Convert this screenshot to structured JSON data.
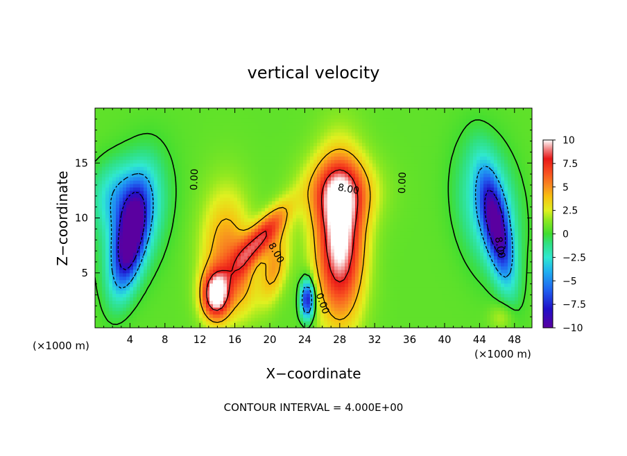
{
  "chart_data": {
    "type": "heatmap",
    "title": "vertical velocity",
    "xlabel": "X−coordinate",
    "ylabel": "Z−coordinate",
    "x_unit_left": "(×1000 m)",
    "x_unit_right": "(×1000 m)",
    "footer": "CONTOUR INTERVAL = 4.000E+00",
    "xlim": [
      0,
      50
    ],
    "ylim": [
      0,
      20
    ],
    "x_ticks": [
      4,
      8,
      12,
      16,
      20,
      24,
      28,
      32,
      36,
      40,
      44,
      48
    ],
    "x_tick_labels": [
      "4",
      "8",
      "12",
      "16",
      "20",
      "24",
      "28",
      "32",
      "36",
      "40",
      "44",
      "48"
    ],
    "y_ticks": [
      5,
      10,
      15
    ],
    "y_tick_labels": [
      "5",
      "10",
      "15"
    ],
    "colorbar": {
      "range": [
        -10,
        10
      ],
      "ticks": [
        10,
        7.5,
        5,
        2.5,
        0,
        -2.5,
        -5,
        -7.5,
        -10
      ],
      "tick_labels": [
        "10",
        "7.5",
        "5",
        "2.5",
        "0",
        "−2.5",
        "−5",
        "−7.5",
        "−10"
      ],
      "stops": [
        {
          "value": -10,
          "color": "#5a00a0"
        },
        {
          "value": -8,
          "color": "#2010c8"
        },
        {
          "value": -6,
          "color": "#2060f0"
        },
        {
          "value": -4,
          "color": "#20b0f0"
        },
        {
          "value": -2.5,
          "color": "#30e8d0"
        },
        {
          "value": -1,
          "color": "#30e080"
        },
        {
          "value": 0,
          "color": "#40dd30"
        },
        {
          "value": 1.5,
          "color": "#90e820"
        },
        {
          "value": 2.5,
          "color": "#e0f020"
        },
        {
          "value": 4,
          "color": "#f8c010"
        },
        {
          "value": 5,
          "color": "#f89020"
        },
        {
          "value": 6.5,
          "color": "#f85020"
        },
        {
          "value": 8,
          "color": "#e81818"
        },
        {
          "value": 9,
          "color": "#f08080"
        },
        {
          "value": 10,
          "color": "#ffffff"
        }
      ]
    },
    "contour_labels": [
      {
        "text": "0.00",
        "x": 11.4,
        "z": 13.5,
        "angle": -88
      },
      {
        "text": "0.00",
        "x": 35.2,
        "z": 13.2,
        "angle": -88
      },
      {
        "text": "0.00",
        "x": 26.0,
        "z": 2.2,
        "angle": 70
      },
      {
        "text": "8.00",
        "x": 20.7,
        "z": 6.8,
        "angle": 60
      },
      {
        "text": "8.00",
        "x": 29.0,
        "z": 12.6,
        "angle": 10
      },
      {
        "text": "8.00",
        "x": 46.3,
        "z": 7.3,
        "angle": 80
      }
    ],
    "features": [
      {
        "x": 4.0,
        "z": 8.0,
        "sx": 1.6,
        "sz": 4.5,
        "w": -10,
        "rot": 0.25
      },
      {
        "x": 4.5,
        "z": 10.0,
        "sx": 3.2,
        "sz": 5.5,
        "w": -4,
        "rot": 0.3
      },
      {
        "x": 2.5,
        "z": 12.0,
        "sx": 3.0,
        "sz": 3.0,
        "w": -3,
        "rot": 0
      },
      {
        "x": 13.8,
        "z": 3.0,
        "sx": 1.6,
        "sz": 2.2,
        "w": 9,
        "rot": 0
      },
      {
        "x": 15.0,
        "z": 7.0,
        "sx": 2.8,
        "sz": 5.5,
        "w": 4.5,
        "rot": 0
      },
      {
        "x": 19.0,
        "z": 8.2,
        "sx": 1.3,
        "sz": 4.0,
        "w": 7,
        "rot": 0.8
      },
      {
        "x": 20.5,
        "z": 5.5,
        "sx": 1.5,
        "sz": 3.5,
        "w": 4,
        "rot": 0.3
      },
      {
        "x": 24.3,
        "z": 2.6,
        "sx": 0.8,
        "sz": 1.8,
        "w": -9,
        "rot": 0
      },
      {
        "x": 28.0,
        "z": 8.0,
        "sx": 2.7,
        "sz": 7.0,
        "w": 10,
        "rot": 0
      },
      {
        "x": 28.0,
        "z": 12.5,
        "sx": 4.0,
        "sz": 3.0,
        "w": 4.5,
        "rot": 0
      },
      {
        "x": 46.0,
        "z": 9.0,
        "sx": 1.4,
        "sz": 5.0,
        "w": -8.5,
        "rot": -0.25
      },
      {
        "x": 45.0,
        "z": 11.0,
        "sx": 3.2,
        "sz": 5.5,
        "w": -4,
        "rot": -0.2
      },
      {
        "x": 46.5,
        "z": 1.0,
        "sx": 1.4,
        "sz": 1.2,
        "w": 1.5,
        "rot": 0
      },
      {
        "x": 17.0,
        "z": 4.0,
        "sx": 1.5,
        "sz": 3.0,
        "w": 2.0,
        "rot": 0
      }
    ]
  }
}
